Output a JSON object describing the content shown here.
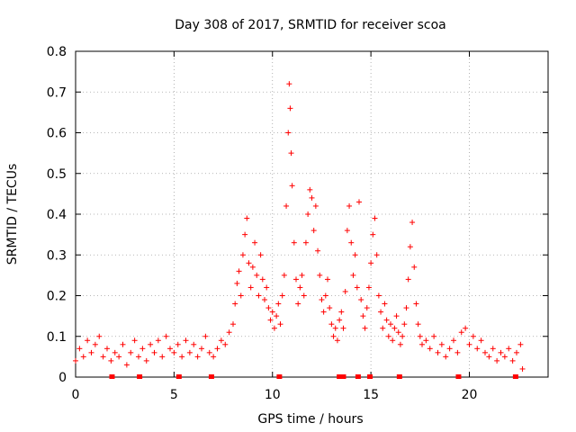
{
  "chart_data": {
    "type": "scatter",
    "title": "Day 308 of 2017, SRMTID for receiver scoa",
    "xlabel": "GPS time / hours",
    "ylabel": "SRMTID / TECUs",
    "xlim": [
      0,
      24
    ],
    "ylim": [
      0,
      0.8
    ],
    "x_ticks": [
      0,
      5,
      10,
      15,
      20
    ],
    "y_ticks": [
      0,
      0.1,
      0.2,
      0.3,
      0.4,
      0.5,
      0.6,
      0.7,
      0.8
    ],
    "x_tick_labels": [
      "0",
      "5",
      "10",
      "15",
      "20"
    ],
    "y_tick_labels": [
      "0",
      "0.1",
      "0.2",
      "0.3",
      "0.4",
      "0.5",
      "0.6",
      "0.7",
      "0.8"
    ],
    "grid": true,
    "marker": "+",
    "color": "#ff0000",
    "series": [
      {
        "name": "SRMTID",
        "points": [
          [
            0.0,
            0.04
          ],
          [
            0.2,
            0.07
          ],
          [
            0.4,
            0.05
          ],
          [
            0.6,
            0.09
          ],
          [
            0.8,
            0.06
          ],
          [
            1.0,
            0.08
          ],
          [
            1.2,
            0.1
          ],
          [
            1.4,
            0.05
          ],
          [
            1.6,
            0.07
          ],
          [
            1.8,
            0.04
          ],
          [
            2.0,
            0.06
          ],
          [
            2.2,
            0.05
          ],
          [
            2.4,
            0.08
          ],
          [
            2.6,
            0.03
          ],
          [
            2.8,
            0.06
          ],
          [
            3.0,
            0.09
          ],
          [
            3.2,
            0.05
          ],
          [
            3.4,
            0.07
          ],
          [
            3.6,
            0.04
          ],
          [
            3.8,
            0.08
          ],
          [
            4.0,
            0.06
          ],
          [
            4.2,
            0.09
          ],
          [
            4.4,
            0.05
          ],
          [
            4.6,
            0.1
          ],
          [
            4.8,
            0.07
          ],
          [
            5.0,
            0.06
          ],
          [
            5.2,
            0.08
          ],
          [
            5.4,
            0.05
          ],
          [
            5.6,
            0.09
          ],
          [
            5.8,
            0.06
          ],
          [
            6.0,
            0.08
          ],
          [
            6.2,
            0.05
          ],
          [
            6.4,
            0.07
          ],
          [
            6.6,
            0.1
          ],
          [
            6.8,
            0.06
          ],
          [
            7.0,
            0.05
          ],
          [
            7.2,
            0.07
          ],
          [
            7.4,
            0.09
          ],
          [
            7.6,
            0.08
          ],
          [
            7.8,
            0.11
          ],
          [
            8.0,
            0.13
          ],
          [
            8.1,
            0.18
          ],
          [
            8.2,
            0.23
          ],
          [
            8.3,
            0.26
          ],
          [
            8.4,
            0.2
          ],
          [
            8.5,
            0.3
          ],
          [
            8.6,
            0.35
          ],
          [
            8.7,
            0.39
          ],
          [
            8.8,
            0.28
          ],
          [
            8.9,
            0.22
          ],
          [
            9.0,
            0.27
          ],
          [
            9.1,
            0.33
          ],
          [
            9.2,
            0.25
          ],
          [
            9.3,
            0.2
          ],
          [
            9.4,
            0.3
          ],
          [
            9.5,
            0.24
          ],
          [
            9.6,
            0.19
          ],
          [
            9.7,
            0.22
          ],
          [
            9.8,
            0.17
          ],
          [
            9.9,
            0.14
          ],
          [
            10.0,
            0.16
          ],
          [
            10.1,
            0.12
          ],
          [
            10.2,
            0.15
          ],
          [
            10.3,
            0.18
          ],
          [
            10.4,
            0.13
          ],
          [
            10.5,
            0.2
          ],
          [
            10.6,
            0.25
          ],
          [
            10.7,
            0.42
          ],
          [
            10.8,
            0.6
          ],
          [
            10.85,
            0.72
          ],
          [
            10.9,
            0.66
          ],
          [
            10.95,
            0.55
          ],
          [
            11.0,
            0.47
          ],
          [
            11.1,
            0.33
          ],
          [
            11.2,
            0.24
          ],
          [
            11.3,
            0.18
          ],
          [
            11.4,
            0.22
          ],
          [
            11.5,
            0.25
          ],
          [
            11.6,
            0.2
          ],
          [
            11.7,
            0.33
          ],
          [
            11.8,
            0.4
          ],
          [
            11.9,
            0.46
          ],
          [
            12.0,
            0.44
          ],
          [
            12.1,
            0.36
          ],
          [
            12.2,
            0.42
          ],
          [
            12.3,
            0.31
          ],
          [
            12.4,
            0.25
          ],
          [
            12.5,
            0.19
          ],
          [
            12.6,
            0.16
          ],
          [
            12.7,
            0.2
          ],
          [
            12.8,
            0.24
          ],
          [
            12.9,
            0.17
          ],
          [
            13.0,
            0.13
          ],
          [
            13.1,
            0.1
          ],
          [
            13.2,
            0.12
          ],
          [
            13.3,
            0.09
          ],
          [
            13.4,
            0.14
          ],
          [
            13.5,
            0.16
          ],
          [
            13.6,
            0.12
          ],
          [
            13.7,
            0.21
          ],
          [
            13.8,
            0.36
          ],
          [
            13.9,
            0.42
          ],
          [
            14.0,
            0.33
          ],
          [
            14.1,
            0.25
          ],
          [
            14.2,
            0.3
          ],
          [
            14.3,
            0.22
          ],
          [
            14.4,
            0.43
          ],
          [
            14.5,
            0.19
          ],
          [
            14.6,
            0.15
          ],
          [
            14.7,
            0.12
          ],
          [
            14.8,
            0.17
          ],
          [
            14.9,
            0.22
          ],
          [
            15.0,
            0.28
          ],
          [
            15.1,
            0.35
          ],
          [
            15.2,
            0.39
          ],
          [
            15.3,
            0.3
          ],
          [
            15.4,
            0.2
          ],
          [
            15.5,
            0.16
          ],
          [
            15.6,
            0.12
          ],
          [
            15.7,
            0.18
          ],
          [
            15.8,
            0.14
          ],
          [
            15.9,
            0.1
          ],
          [
            16.0,
            0.13
          ],
          [
            16.1,
            0.09
          ],
          [
            16.2,
            0.12
          ],
          [
            16.3,
            0.15
          ],
          [
            16.4,
            0.11
          ],
          [
            16.5,
            0.08
          ],
          [
            16.6,
            0.1
          ],
          [
            16.7,
            0.13
          ],
          [
            16.8,
            0.17
          ],
          [
            16.9,
            0.24
          ],
          [
            17.0,
            0.32
          ],
          [
            17.1,
            0.38
          ],
          [
            17.2,
            0.27
          ],
          [
            17.3,
            0.18
          ],
          [
            17.4,
            0.13
          ],
          [
            17.5,
            0.1
          ],
          [
            17.6,
            0.08
          ],
          [
            17.8,
            0.09
          ],
          [
            18.0,
            0.07
          ],
          [
            18.2,
            0.1
          ],
          [
            18.4,
            0.06
          ],
          [
            18.6,
            0.08
          ],
          [
            18.8,
            0.05
          ],
          [
            19.0,
            0.07
          ],
          [
            19.2,
            0.09
          ],
          [
            19.4,
            0.06
          ],
          [
            19.6,
            0.11
          ],
          [
            19.8,
            0.12
          ],
          [
            20.0,
            0.08
          ],
          [
            20.2,
            0.1
          ],
          [
            20.4,
            0.07
          ],
          [
            20.6,
            0.09
          ],
          [
            20.8,
            0.06
          ],
          [
            21.0,
            0.05
          ],
          [
            21.2,
            0.07
          ],
          [
            21.4,
            0.04
          ],
          [
            21.6,
            0.06
          ],
          [
            21.8,
            0.05
          ],
          [
            22.0,
            0.07
          ],
          [
            22.2,
            0.04
          ],
          [
            22.4,
            0.06
          ],
          [
            22.6,
            0.08
          ],
          [
            22.7,
            0.02
          ]
        ]
      }
    ],
    "rug_x": [
      1.85,
      3.25,
      5.25,
      6.9,
      10.35,
      13.4,
      13.6,
      14.35,
      14.95,
      16.45,
      19.45,
      22.35
    ]
  }
}
